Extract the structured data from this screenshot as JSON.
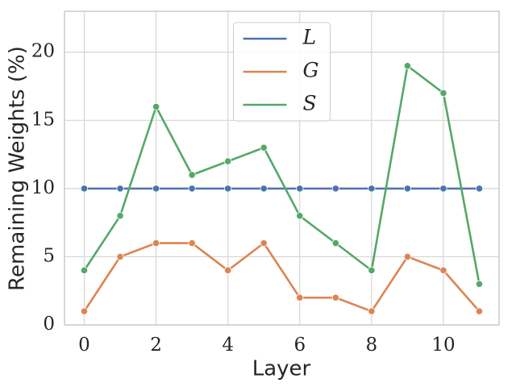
{
  "chart_data": {
    "type": "line",
    "x": [
      0,
      1,
      2,
      3,
      4,
      5,
      6,
      7,
      8,
      9,
      10,
      11
    ],
    "series": [
      {
        "name": "L",
        "color": "#4c72b0",
        "values": [
          10,
          10,
          10,
          10,
          10,
          10,
          10,
          10,
          10,
          10,
          10,
          10
        ]
      },
      {
        "name": "G",
        "color": "#dd8452",
        "values": [
          1,
          5,
          6,
          6,
          4,
          6,
          2,
          2,
          1,
          5,
          4,
          1
        ]
      },
      {
        "name": "S",
        "color": "#55a868",
        "values": [
          4,
          8,
          16,
          11,
          12,
          13,
          8,
          6,
          4,
          19,
          17,
          3
        ]
      }
    ],
    "xlabel": "Layer",
    "ylabel": "Remaining Weights (%)",
    "xlim": [
      -0.55,
      11.55
    ],
    "ylim": [
      0,
      23
    ],
    "xticks": [
      0,
      2,
      4,
      6,
      8,
      10
    ],
    "yticks": [
      0,
      5,
      10,
      15,
      20
    ],
    "grid": true,
    "legend": "upper center"
  }
}
